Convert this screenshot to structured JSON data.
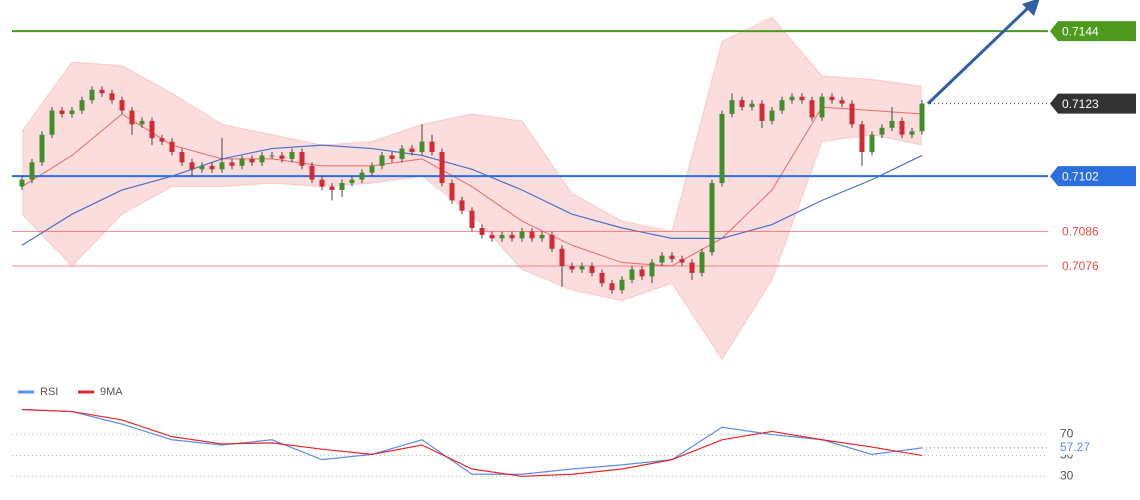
{
  "chart_data": [
    {
      "type": "candlestick",
      "ylim": [
        0.7043,
        0.7153
      ],
      "up_color": "#3f8f2a",
      "down_color": "#d42a33",
      "candles": [
        [
          0.7099,
          0.7102,
          0.7098,
          0.7101
        ],
        [
          0.7101,
          0.7107,
          0.71,
          0.7106
        ],
        [
          0.7106,
          0.7115,
          0.7105,
          0.7114
        ],
        [
          0.7114,
          0.7122,
          0.7113,
          0.7121
        ],
        [
          0.7121,
          0.7122,
          0.7119,
          0.712
        ],
        [
          0.712,
          0.7122,
          0.7119,
          0.7121
        ],
        [
          0.7121,
          0.7125,
          0.712,
          0.7124
        ],
        [
          0.7124,
          0.7128,
          0.7123,
          0.7127
        ],
        [
          0.7127,
          0.7128,
          0.7125,
          0.7126
        ],
        [
          0.7126,
          0.7127,
          0.7123,
          0.7124
        ],
        [
          0.7124,
          0.7125,
          0.712,
          0.7121
        ],
        [
          0.7121,
          0.7122,
          0.7114,
          0.7117
        ],
        [
          0.7117,
          0.7119,
          0.7116,
          0.7118
        ],
        [
          0.7118,
          0.7119,
          0.7111,
          0.7113
        ],
        [
          0.7113,
          0.7114,
          0.7111,
          0.7112
        ],
        [
          0.7112,
          0.7113,
          0.7108,
          0.7109
        ],
        [
          0.7109,
          0.711,
          0.7105,
          0.7106
        ],
        [
          0.7106,
          0.7107,
          0.7102,
          0.7104
        ],
        [
          0.7104,
          0.7106,
          0.7103,
          0.7105
        ],
        [
          0.7105,
          0.7106,
          0.7103,
          0.7104
        ],
        [
          0.7104,
          0.7113,
          0.7103,
          0.7106
        ],
        [
          0.7106,
          0.7107,
          0.7104,
          0.7105
        ],
        [
          0.7105,
          0.7108,
          0.7104,
          0.7107
        ],
        [
          0.7107,
          0.7108,
          0.7105,
          0.7106
        ],
        [
          0.7106,
          0.7109,
          0.7105,
          0.7108
        ],
        [
          0.7108,
          0.7109,
          0.7107,
          0.7108
        ],
        [
          0.7108,
          0.7109,
          0.7106,
          0.7107
        ],
        [
          0.7107,
          0.711,
          0.7106,
          0.7109
        ],
        [
          0.7109,
          0.711,
          0.7104,
          0.7105
        ],
        [
          0.7105,
          0.7106,
          0.71,
          0.7101
        ],
        [
          0.7101,
          0.7102,
          0.7098,
          0.7099
        ],
        [
          0.7099,
          0.71,
          0.7095,
          0.7098
        ],
        [
          0.7098,
          0.7101,
          0.7096,
          0.71
        ],
        [
          0.71,
          0.7102,
          0.7099,
          0.7101
        ],
        [
          0.7101,
          0.7104,
          0.71,
          0.7103
        ],
        [
          0.7103,
          0.7106,
          0.7102,
          0.7105
        ],
        [
          0.7105,
          0.7109,
          0.7104,
          0.7108
        ],
        [
          0.7108,
          0.7109,
          0.7106,
          0.7107
        ],
        [
          0.7107,
          0.7111,
          0.7106,
          0.711
        ],
        [
          0.711,
          0.7111,
          0.7108,
          0.7109
        ],
        [
          0.7109,
          0.7117,
          0.7108,
          0.7112
        ],
        [
          0.7112,
          0.7114,
          0.7108,
          0.7109
        ],
        [
          0.7109,
          0.711,
          0.7099,
          0.71
        ],
        [
          0.71,
          0.7101,
          0.7094,
          0.7095
        ],
        [
          0.7095,
          0.7096,
          0.7091,
          0.7092
        ],
        [
          0.7092,
          0.7093,
          0.7086,
          0.7087
        ],
        [
          0.7087,
          0.7088,
          0.7084,
          0.7085
        ],
        [
          0.7085,
          0.7086,
          0.7083,
          0.7084
        ],
        [
          0.7084,
          0.7086,
          0.7083,
          0.7085
        ],
        [
          0.7085,
          0.7086,
          0.7083,
          0.7084
        ],
        [
          0.7084,
          0.7087,
          0.7083,
          0.7086
        ],
        [
          0.7086,
          0.7087,
          0.7083,
          0.7084
        ],
        [
          0.7084,
          0.7086,
          0.7083,
          0.7085
        ],
        [
          0.7085,
          0.7086,
          0.708,
          0.7081
        ],
        [
          0.7081,
          0.7082,
          0.707,
          0.7076
        ],
        [
          0.7076,
          0.7077,
          0.7074,
          0.7075
        ],
        [
          0.7075,
          0.7077,
          0.7074,
          0.7076
        ],
        [
          0.7076,
          0.7077,
          0.7073,
          0.7074
        ],
        [
          0.7074,
          0.7075,
          0.707,
          0.7071
        ],
        [
          0.7071,
          0.7072,
          0.7068,
          0.7069
        ],
        [
          0.7069,
          0.7073,
          0.7068,
          0.7072
        ],
        [
          0.7072,
          0.7076,
          0.7071,
          0.7075
        ],
        [
          0.7075,
          0.7076,
          0.7072,
          0.7073
        ],
        [
          0.7073,
          0.7078,
          0.7071,
          0.7077
        ],
        [
          0.7077,
          0.708,
          0.7076,
          0.7079
        ],
        [
          0.7079,
          0.708,
          0.7077,
          0.7078
        ],
        [
          0.7078,
          0.7079,
          0.7076,
          0.7077
        ],
        [
          0.7077,
          0.7078,
          0.7072,
          0.7074
        ],
        [
          0.7074,
          0.7081,
          0.7073,
          0.708
        ],
        [
          0.708,
          0.7101,
          0.7079,
          0.71
        ],
        [
          0.71,
          0.7121,
          0.7099,
          0.712
        ],
        [
          0.712,
          0.7126,
          0.7119,
          0.7124
        ],
        [
          0.7124,
          0.7125,
          0.7121,
          0.7122
        ],
        [
          0.7122,
          0.7124,
          0.7121,
          0.7123
        ],
        [
          0.7123,
          0.7124,
          0.7116,
          0.7118
        ],
        [
          0.7118,
          0.7122,
          0.7117,
          0.7121
        ],
        [
          0.7121,
          0.7125,
          0.712,
          0.7124
        ],
        [
          0.7124,
          0.7126,
          0.7123,
          0.7125
        ],
        [
          0.7125,
          0.7126,
          0.7123,
          0.7124
        ],
        [
          0.7124,
          0.7125,
          0.7118,
          0.7119
        ],
        [
          0.7119,
          0.7126,
          0.7118,
          0.7125
        ],
        [
          0.7125,
          0.7126,
          0.7123,
          0.7124
        ],
        [
          0.7124,
          0.7125,
          0.7122,
          0.7123
        ],
        [
          0.7123,
          0.7124,
          0.7116,
          0.7117
        ],
        [
          0.7117,
          0.7118,
          0.7105,
          0.7109
        ],
        [
          0.7109,
          0.7115,
          0.7108,
          0.7114
        ],
        [
          0.7114,
          0.7117,
          0.7113,
          0.7116
        ],
        [
          0.7116,
          0.7122,
          0.7115,
          0.7118
        ],
        [
          0.7118,
          0.7119,
          0.7113,
          0.7114
        ],
        [
          0.7114,
          0.7116,
          0.7113,
          0.7115
        ],
        [
          0.7115,
          0.7124,
          0.7114,
          0.7123
        ]
      ],
      "bands": {
        "color": "#f6b3b3",
        "upper": [
          0.7115,
          0.7135,
          0.7134,
          0.7126,
          0.7117,
          0.7114,
          0.7111,
          0.7112,
          0.7117,
          0.712,
          0.7118,
          0.7097,
          0.7089,
          0.7086,
          0.7141,
          0.7148,
          0.7131,
          0.713,
          0.7128
        ],
        "middle": [
          0.7099,
          0.7108,
          0.712,
          0.7111,
          0.7107,
          0.7107,
          0.7105,
          0.7105,
          0.7107,
          0.7099,
          0.7089,
          0.7082,
          0.7077,
          0.7076,
          0.7084,
          0.7098,
          0.7122,
          0.7121,
          0.712
        ],
        "lower": [
          0.7091,
          0.7076,
          0.7091,
          0.7099,
          0.7099,
          0.71,
          0.7099,
          0.71,
          0.7102,
          0.7091,
          0.7075,
          0.7069,
          0.7066,
          0.7071,
          0.7049,
          0.7072,
          0.7112,
          0.7114,
          0.7111
        ]
      },
      "moving_average": {
        "color": "#4a72c9",
        "values": [
          0.7082,
          0.7091,
          0.7098,
          0.7102,
          0.7107,
          0.711,
          0.7111,
          0.711,
          0.7108,
          0.7104,
          0.7098,
          0.7091,
          0.7087,
          0.7084,
          0.7084,
          0.7088,
          0.7095,
          0.7101,
          0.7108
        ]
      },
      "levels": [
        {
          "value": 0.7144,
          "color": "#4e9a1e",
          "style": "box",
          "line": "solid"
        },
        {
          "value": 0.7123,
          "color": "#333333",
          "style": "box",
          "line": "dotted"
        },
        {
          "value": 0.7102,
          "color": "#2a6ee0",
          "style": "box",
          "line": "solid"
        },
        {
          "value": 0.7086,
          "color": "#f04848",
          "style": "text",
          "line": "thin"
        },
        {
          "value": 0.7076,
          "color": "#f04848",
          "style": "text",
          "line": "thin"
        }
      ]
    },
    {
      "type": "line",
      "ylim": [
        15,
        105
      ],
      "yticks": [
        70,
        50,
        30
      ],
      "series": [
        {
          "name": "RSI",
          "color": "#5b8def",
          "values": [
            94,
            92,
            80,
            65,
            60,
            65,
            46,
            51,
            65,
            32,
            32,
            37,
            41,
            46,
            77,
            70,
            65,
            51,
            57.27
          ]
        },
        {
          "name": "9MA",
          "color": "#e8262a",
          "values": [
            94,
            92,
            84,
            68,
            61,
            62,
            56,
            51,
            60,
            37,
            30,
            32,
            37,
            46,
            65,
            73,
            65,
            58,
            50
          ]
        }
      ]
    }
  ]
}
